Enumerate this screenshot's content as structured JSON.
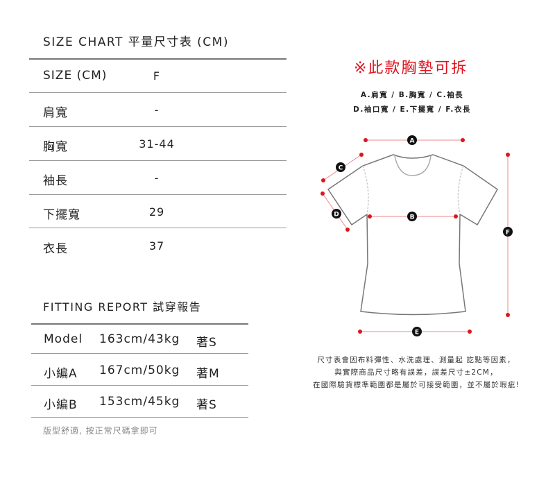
{
  "size_chart": {
    "title": "SIZE CHART 平量尺寸表 (CM)",
    "header": {
      "label": "SIZE (CM)",
      "value": "F"
    },
    "rows": [
      {
        "label": "肩寬",
        "value": "-"
      },
      {
        "label": "胸寬",
        "value": "31-44"
      },
      {
        "label": "袖長",
        "value": "-"
      },
      {
        "label": "下擺寬",
        "value": "29"
      },
      {
        "label": "衣長",
        "value": "37"
      }
    ]
  },
  "fitting_report": {
    "title": "FITTING REPORT 試穿報告",
    "rows": [
      {
        "name": "Model",
        "body": "163cm/43kg",
        "size": "著S"
      },
      {
        "name": "小編A",
        "body": "167cm/50kg",
        "size": "著M"
      },
      {
        "name": "小編B",
        "body": "153cm/45kg",
        "size": "著S"
      }
    ],
    "note": "版型舒適, 按正常尺碼拿即可"
  },
  "diagram": {
    "notice": "※此款胸墊可拆",
    "legend_line1": "A.肩寬 / B.胸寬 / C.袖長",
    "legend_line2": "D.袖口寬 / E.下擺寬 / F.衣長",
    "markers": {
      "A": "A",
      "B": "B",
      "C": "C",
      "D": "D",
      "E": "E",
      "F": "F"
    },
    "accent_color": "#e0141e",
    "disclaimer": [
      "尺寸表會因布料彈性、水洗處理、測量起 訖點等因素，",
      "與實際商品尺寸略有誤差，誤差尺寸±2CM，",
      "在國際驗貨標準範圍都是屬於可接受範圍，並不屬於瑕疵!"
    ]
  }
}
